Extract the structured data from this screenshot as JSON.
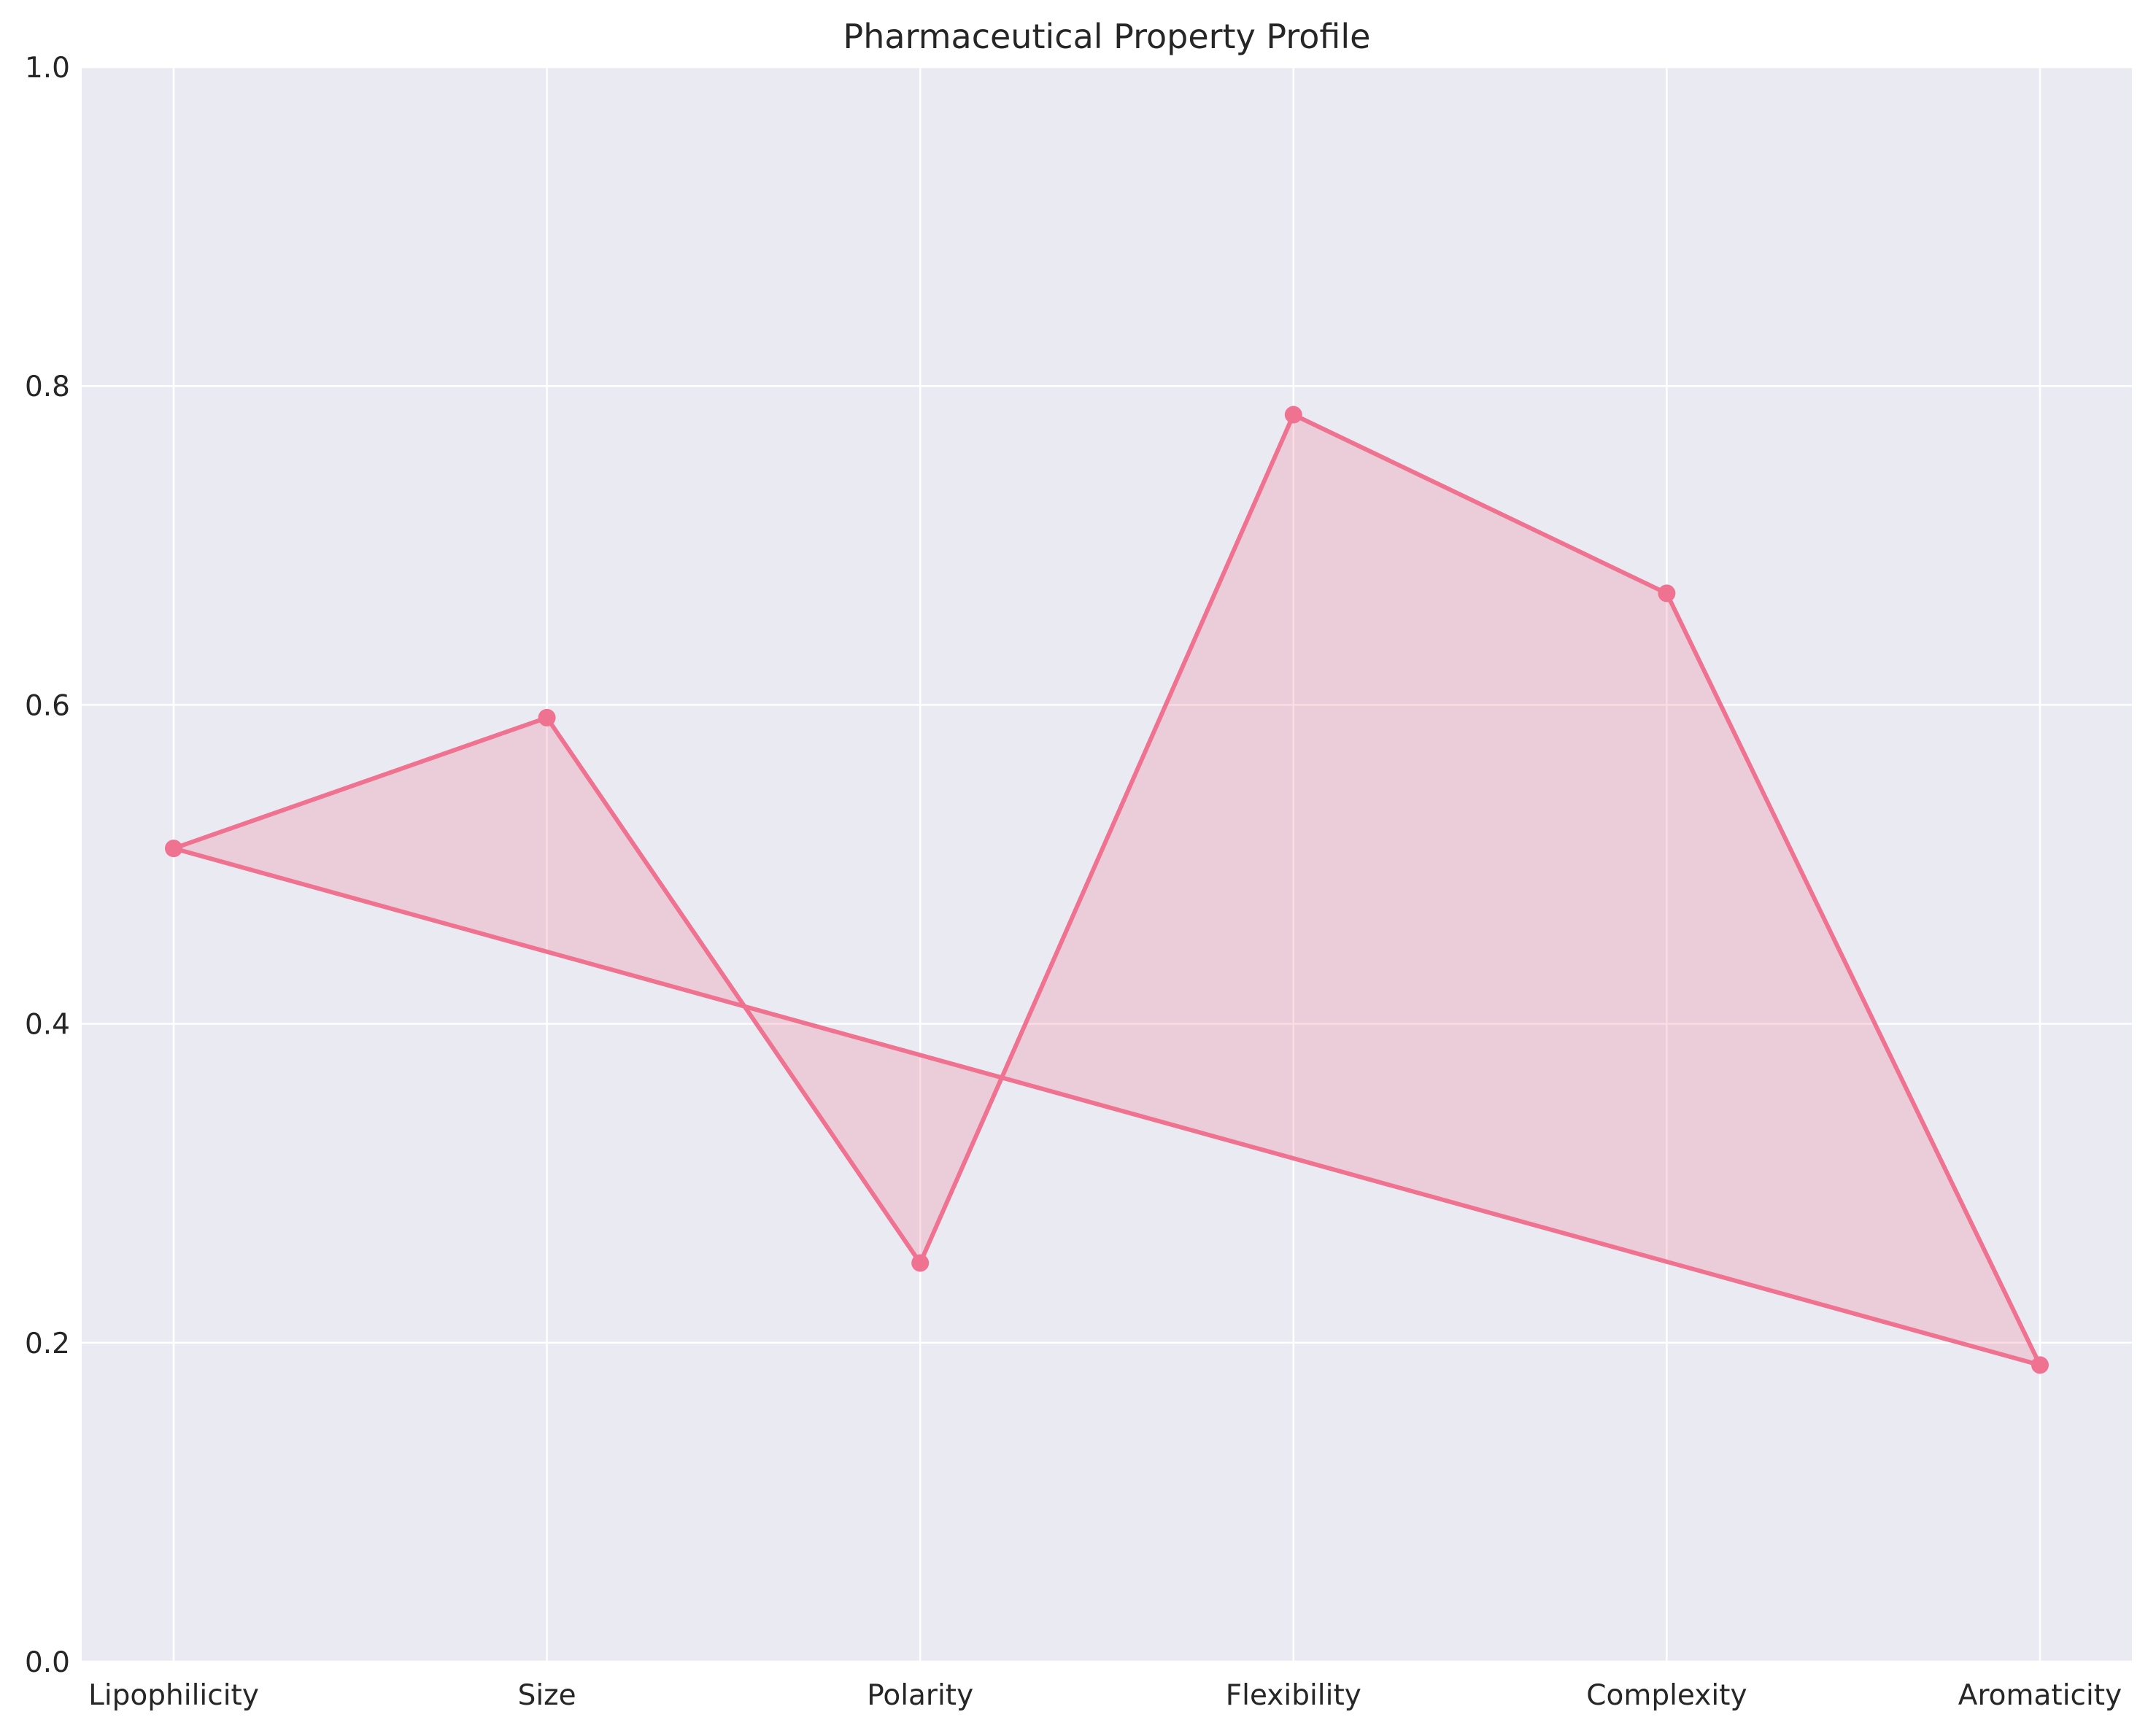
{
  "chart_data": {
    "type": "line",
    "title": "Pharmaceutical Property Profile",
    "xlabel": "",
    "ylabel": "",
    "categories": [
      "Lipophilicity",
      "Size",
      "Polarity",
      "Flexibility",
      "Complexity",
      "Aromaticity"
    ],
    "series": [
      {
        "values": [
          0.51,
          0.592,
          0.25,
          0.782,
          0.67,
          0.186
        ],
        "closed": true,
        "filled": true,
        "color": "#f07291",
        "fill_color": "#f07291",
        "fill_opacity": 0.25
      }
    ],
    "ylim": [
      0,
      1
    ],
    "yticks": [
      "0.0",
      "0.2",
      "0.4",
      "0.6",
      "0.8",
      "1.0"
    ],
    "grid": true,
    "legend": "none",
    "colors": {
      "plot_background": "#eaeaf2",
      "grid": "#ffffff"
    }
  }
}
